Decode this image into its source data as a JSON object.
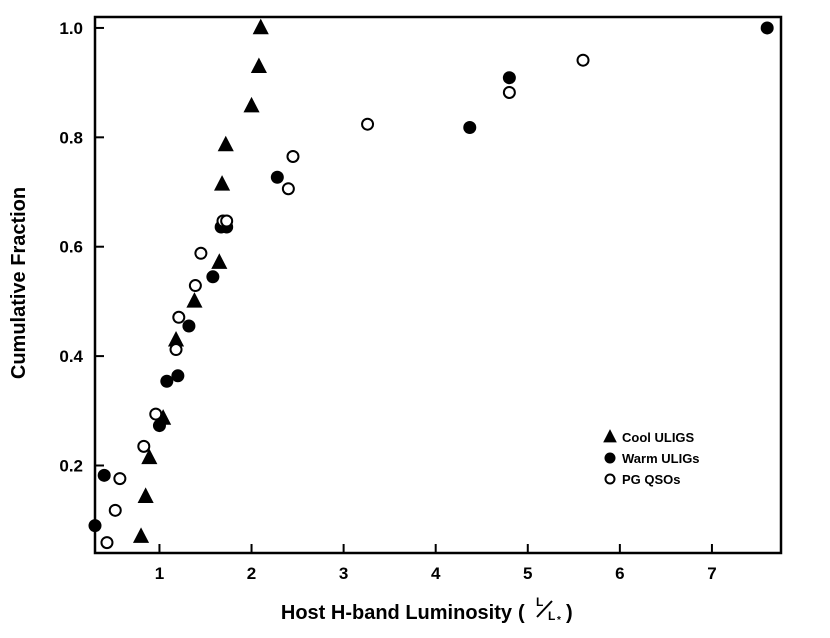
{
  "chart_data": {
    "type": "scatter",
    "title": "",
    "xlabel": "Host H-band Luminosity",
    "xlabel_unit_numerator": "L",
    "xlabel_unit_denominator": "L",
    "xlabel_unit_subscript": "*",
    "ylabel": "Cumulative Fraction",
    "xlim": [
      0.3,
      7.75
    ],
    "ylim": [
      0.04,
      1.02
    ],
    "x_ticks": [
      {
        "value": 1,
        "label": "1"
      },
      {
        "value": 2,
        "label": "2"
      },
      {
        "value": 3,
        "label": "3"
      },
      {
        "value": 4,
        "label": "4"
      },
      {
        "value": 5,
        "label": "5"
      },
      {
        "value": 6,
        "label": "6"
      },
      {
        "value": 7,
        "label": "7"
      }
    ],
    "y_ticks": [
      {
        "value": 0.2,
        "label": "0.2"
      },
      {
        "value": 0.4,
        "label": "0.4"
      },
      {
        "value": 0.6,
        "label": "0.6"
      },
      {
        "value": 0.8,
        "label": "0.8"
      },
      {
        "value": 1.0,
        "label": "1.0"
      }
    ],
    "grid": false,
    "legend_position": "bottom-right",
    "series": [
      {
        "name": "Cool ULIGS",
        "marker": "triangle",
        "color": "#000000",
        "x": [
          0.8,
          0.85,
          0.89,
          1.04,
          1.18,
          1.38,
          1.65,
          1.68,
          1.72,
          2.0,
          2.08,
          2.1
        ],
        "y": [
          0.07,
          0.143,
          0.214,
          0.286,
          0.429,
          0.5,
          0.571,
          0.714,
          0.786,
          0.857,
          0.929,
          1.0
        ]
      },
      {
        "name": "Warm ULIGs",
        "marker": "filled-circle",
        "color": "#000000",
        "x": [
          0.3,
          0.4,
          1.0,
          1.08,
          1.2,
          1.32,
          1.58,
          1.67,
          1.73,
          2.28,
          4.37,
          4.8,
          7.6
        ],
        "y": [
          0.09,
          0.182,
          0.273,
          0.354,
          0.364,
          0.455,
          0.545,
          0.636,
          0.636,
          0.727,
          0.818,
          0.909,
          1.0
        ]
      },
      {
        "name": "PG QSOs",
        "marker": "open-circle",
        "color": "#000000",
        "x": [
          0.43,
          0.52,
          0.57,
          0.83,
          0.96,
          1.18,
          1.21,
          1.39,
          1.45,
          1.69,
          1.73,
          2.4,
          2.45,
          3.26,
          4.8,
          5.6
        ],
        "y": [
          0.059,
          0.118,
          0.176,
          0.235,
          0.294,
          0.412,
          0.471,
          0.529,
          0.588,
          0.647,
          0.647,
          0.706,
          0.765,
          0.824,
          0.882,
          0.941
        ]
      }
    ]
  }
}
